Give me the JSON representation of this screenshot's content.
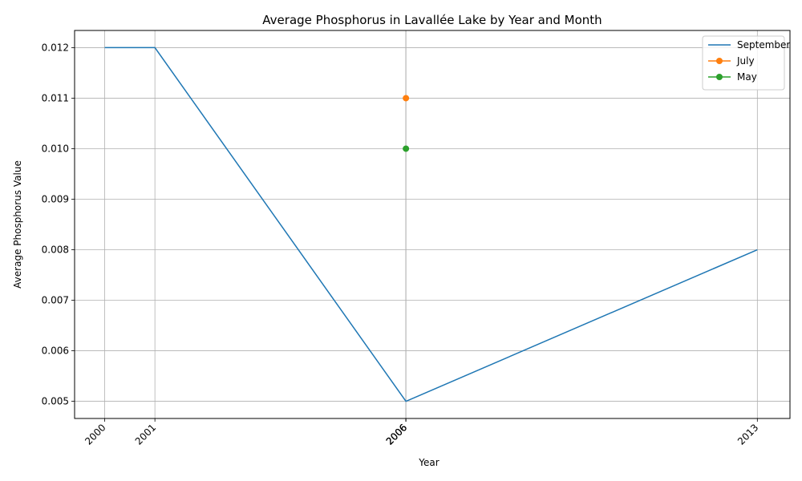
{
  "chart_data": {
    "type": "line",
    "title": "Average Phosphorus in Lavallée Lake by Year and Month",
    "xlabel": "Year",
    "ylabel": "Average Phosphorus Value",
    "xlim": [
      1999.4,
      2013.65
    ],
    "ylim": [
      0.00466,
      0.01234
    ],
    "x_ticks": [
      "2000",
      "2001",
      "2006",
      "2006",
      "2006",
      "2006",
      "2013"
    ],
    "y_ticks": [
      "0.005",
      "0.006",
      "0.007",
      "0.008",
      "0.009",
      "0.010",
      "0.011",
      "0.012"
    ],
    "grid": true,
    "legend_position": "top-right",
    "series": [
      {
        "name": "September",
        "color": "#1f77b4",
        "markers": false,
        "points": [
          [
            2000,
            0.012
          ],
          [
            2001,
            0.012
          ],
          [
            2006,
            0.005
          ],
          [
            2013,
            0.008
          ]
        ]
      },
      {
        "name": "July",
        "color": "#ff7f0e",
        "markers": true,
        "points": [
          [
            2006,
            0.011
          ]
        ]
      },
      {
        "name": "May",
        "color": "#2ca02c",
        "markers": true,
        "points": [
          [
            2006,
            0.01
          ]
        ]
      }
    ]
  }
}
